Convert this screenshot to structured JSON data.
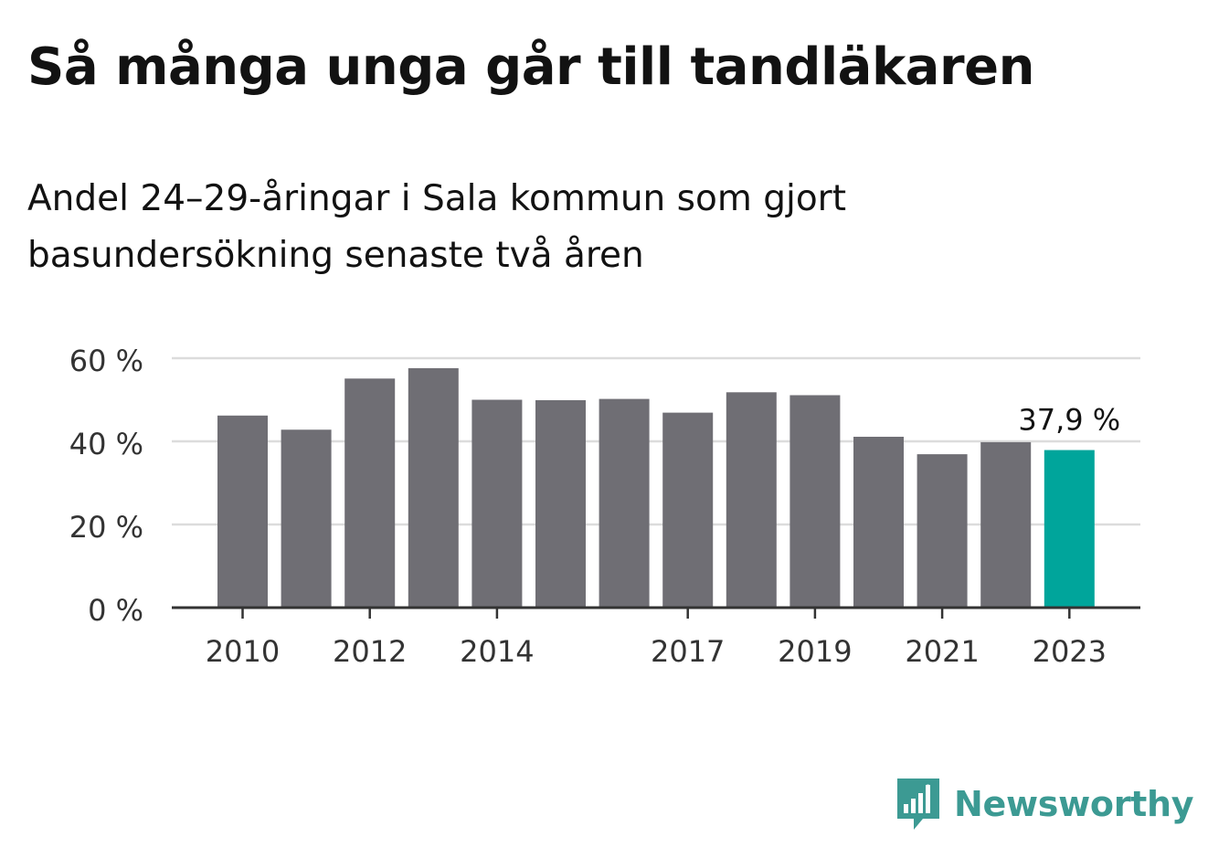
{
  "title": "Så många unga går till tandläkaren",
  "subtitle": "Andel 24–29-åringar i Sala kommun som gjort basundersökning senaste två åren",
  "chart_data": {
    "type": "bar",
    "categories": [
      "2010",
      "2011",
      "2012",
      "2013",
      "2014",
      "2015",
      "2016",
      "2017",
      "2018",
      "2019",
      "2020",
      "2021",
      "2022",
      "2023"
    ],
    "values": [
      46.2,
      42.8,
      55.1,
      57.6,
      50.0,
      49.9,
      50.2,
      46.9,
      51.8,
      51.1,
      41.1,
      36.9,
      39.8,
      37.9
    ],
    "x_tick_labels": [
      "2010",
      "2012",
      "2014",
      "2017",
      "2019",
      "2021",
      "2023"
    ],
    "y_ticks": [
      0,
      20,
      40,
      60
    ],
    "y_tick_labels": [
      "0 %",
      "20 %",
      "40 %",
      "60 %"
    ],
    "ylim": [
      0,
      60
    ],
    "grid": true,
    "highlight_index": 13,
    "data_label": "37,9 %",
    "colors": {
      "bar": "#6f6e74",
      "highlight": "#00a59b",
      "grid": "#dcdcdc",
      "axis": "#333333"
    }
  },
  "logo": {
    "name": "Newsworthy",
    "icon": "newsworthy-bar-chart-speech-bubble-icon",
    "color": "#3c9a93"
  }
}
